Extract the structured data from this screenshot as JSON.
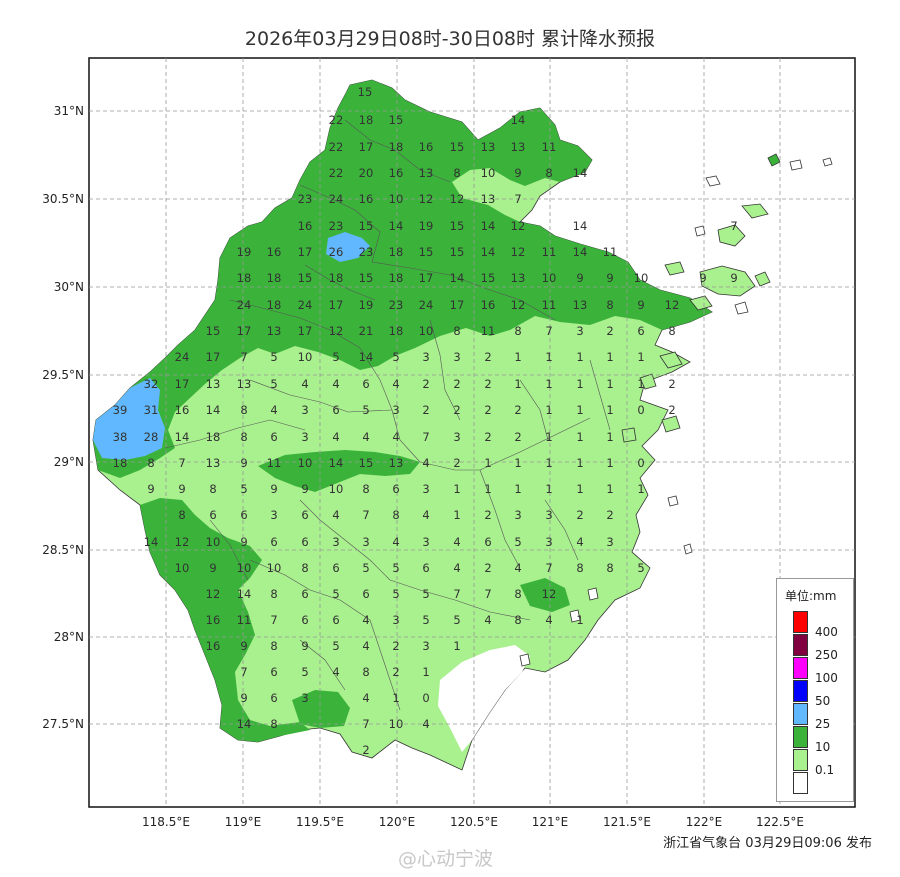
{
  "title": "2026年03月29日08时-30日08时 累计降水预报",
  "axes": {
    "lat_labels": [
      "31°N",
      "30.5°N",
      "30°N",
      "29.5°N",
      "29°N",
      "28.5°N",
      "28°N",
      "27.5°N"
    ],
    "lon_labels": [
      "118.5°E",
      "119°E",
      "119.5°E",
      "120°E",
      "120.5°E",
      "121°E",
      "121.5°E",
      "122°E",
      "122.5°E"
    ]
  },
  "legend": {
    "unit": "单位:mm",
    "items": [
      {
        "label": "400",
        "color": "#ff0000"
      },
      {
        "label": "250",
        "color": "#800040"
      },
      {
        "label": "100",
        "color": "#ff00ff"
      },
      {
        "label": "50",
        "color": "#0000ff"
      },
      {
        "label": "25",
        "color": "#61b8ff"
      },
      {
        "label": "10",
        "color": "#3bb33b"
      },
      {
        "label": "0.1",
        "color": "#a9f08e"
      },
      {
        "label": "",
        "color": "#ffffff"
      }
    ]
  },
  "publisher": "浙江省气象台 03月29日09:06 发布",
  "watermark": "@心动宁波",
  "values": [
    [
      365,
      92,
      "15"
    ],
    [
      336,
      120,
      "22"
    ],
    [
      366,
      120,
      "18"
    ],
    [
      396,
      120,
      "15"
    ],
    [
      518,
      120,
      "14"
    ],
    [
      336,
      147,
      "22"
    ],
    [
      366,
      147,
      "17"
    ],
    [
      396,
      147,
      "18"
    ],
    [
      426,
      147,
      "16"
    ],
    [
      457,
      147,
      "15"
    ],
    [
      488,
      147,
      "13"
    ],
    [
      518,
      147,
      "13"
    ],
    [
      549,
      147,
      "11"
    ],
    [
      336,
      173,
      "22"
    ],
    [
      366,
      173,
      "20"
    ],
    [
      396,
      173,
      "16"
    ],
    [
      426,
      173,
      "13"
    ],
    [
      457,
      173,
      "8"
    ],
    [
      488,
      173,
      "10"
    ],
    [
      518,
      173,
      "9"
    ],
    [
      549,
      173,
      "8"
    ],
    [
      580,
      173,
      "14"
    ],
    [
      305,
      199,
      "23"
    ],
    [
      336,
      199,
      "24"
    ],
    [
      366,
      199,
      "16"
    ],
    [
      396,
      199,
      "10"
    ],
    [
      426,
      199,
      "12"
    ],
    [
      457,
      199,
      "12"
    ],
    [
      488,
      199,
      "13"
    ],
    [
      518,
      199,
      "7"
    ],
    [
      305,
      226,
      "16"
    ],
    [
      336,
      226,
      "23"
    ],
    [
      366,
      226,
      "15"
    ],
    [
      396,
      226,
      "14"
    ],
    [
      426,
      226,
      "19"
    ],
    [
      457,
      226,
      "15"
    ],
    [
      488,
      226,
      "14"
    ],
    [
      518,
      226,
      "12"
    ],
    [
      580,
      226,
      "14"
    ],
    [
      734,
      226,
      "7"
    ],
    [
      244,
      252,
      "19"
    ],
    [
      274,
      252,
      "16"
    ],
    [
      305,
      252,
      "17"
    ],
    [
      336,
      252,
      "26"
    ],
    [
      366,
      252,
      "23"
    ],
    [
      396,
      252,
      "18"
    ],
    [
      426,
      252,
      "15"
    ],
    [
      457,
      252,
      "15"
    ],
    [
      488,
      252,
      "14"
    ],
    [
      518,
      252,
      "12"
    ],
    [
      549,
      252,
      "11"
    ],
    [
      580,
      252,
      "14"
    ],
    [
      610,
      252,
      "11"
    ],
    [
      244,
      278,
      "18"
    ],
    [
      274,
      278,
      "18"
    ],
    [
      305,
      278,
      "15"
    ],
    [
      336,
      278,
      "18"
    ],
    [
      366,
      278,
      "15"
    ],
    [
      396,
      278,
      "18"
    ],
    [
      426,
      278,
      "17"
    ],
    [
      457,
      278,
      "14"
    ],
    [
      488,
      278,
      "15"
    ],
    [
      518,
      278,
      "13"
    ],
    [
      549,
      278,
      "10"
    ],
    [
      580,
      278,
      "9"
    ],
    [
      610,
      278,
      "9"
    ],
    [
      641,
      278,
      "10"
    ],
    [
      703,
      278,
      "9"
    ],
    [
      734,
      278,
      "9"
    ],
    [
      244,
      305,
      "24"
    ],
    [
      274,
      305,
      "18"
    ],
    [
      305,
      305,
      "24"
    ],
    [
      336,
      305,
      "17"
    ],
    [
      366,
      305,
      "19"
    ],
    [
      396,
      305,
      "23"
    ],
    [
      426,
      305,
      "24"
    ],
    [
      457,
      305,
      "17"
    ],
    [
      488,
      305,
      "16"
    ],
    [
      518,
      305,
      "12"
    ],
    [
      549,
      305,
      "11"
    ],
    [
      580,
      305,
      "13"
    ],
    [
      610,
      305,
      "8"
    ],
    [
      641,
      305,
      "9"
    ],
    [
      672,
      305,
      "12"
    ],
    [
      213,
      331,
      "15"
    ],
    [
      244,
      331,
      "17"
    ],
    [
      274,
      331,
      "13"
    ],
    [
      305,
      331,
      "17"
    ],
    [
      336,
      331,
      "12"
    ],
    [
      366,
      331,
      "21"
    ],
    [
      396,
      331,
      "18"
    ],
    [
      426,
      331,
      "10"
    ],
    [
      457,
      331,
      "8"
    ],
    [
      488,
      331,
      "11"
    ],
    [
      518,
      331,
      "8"
    ],
    [
      549,
      331,
      "7"
    ],
    [
      580,
      331,
      "3"
    ],
    [
      610,
      331,
      "2"
    ],
    [
      641,
      331,
      "6"
    ],
    [
      672,
      331,
      "8"
    ],
    [
      182,
      357,
      "24"
    ],
    [
      213,
      357,
      "17"
    ],
    [
      244,
      357,
      "7"
    ],
    [
      274,
      357,
      "5"
    ],
    [
      305,
      357,
      "10"
    ],
    [
      336,
      357,
      "5"
    ],
    [
      366,
      357,
      "14"
    ],
    [
      396,
      357,
      "5"
    ],
    [
      426,
      357,
      "3"
    ],
    [
      457,
      357,
      "3"
    ],
    [
      488,
      357,
      "2"
    ],
    [
      518,
      357,
      "1"
    ],
    [
      549,
      357,
      "1"
    ],
    [
      580,
      357,
      "1"
    ],
    [
      610,
      357,
      "1"
    ],
    [
      641,
      357,
      "1"
    ],
    [
      151,
      384,
      "32"
    ],
    [
      182,
      384,
      "17"
    ],
    [
      213,
      384,
      "13"
    ],
    [
      244,
      384,
      "13"
    ],
    [
      274,
      384,
      "5"
    ],
    [
      305,
      384,
      "4"
    ],
    [
      336,
      384,
      "4"
    ],
    [
      366,
      384,
      "6"
    ],
    [
      396,
      384,
      "4"
    ],
    [
      426,
      384,
      "2"
    ],
    [
      457,
      384,
      "2"
    ],
    [
      488,
      384,
      "2"
    ],
    [
      518,
      384,
      "1"
    ],
    [
      549,
      384,
      "1"
    ],
    [
      580,
      384,
      "1"
    ],
    [
      610,
      384,
      "1"
    ],
    [
      641,
      384,
      "1"
    ],
    [
      672,
      384,
      "2"
    ],
    [
      120,
      410,
      "39"
    ],
    [
      151,
      410,
      "31"
    ],
    [
      182,
      410,
      "16"
    ],
    [
      213,
      410,
      "14"
    ],
    [
      244,
      410,
      "8"
    ],
    [
      274,
      410,
      "4"
    ],
    [
      305,
      410,
      "3"
    ],
    [
      336,
      410,
      "6"
    ],
    [
      366,
      410,
      "5"
    ],
    [
      396,
      410,
      "3"
    ],
    [
      426,
      410,
      "2"
    ],
    [
      457,
      410,
      "2"
    ],
    [
      488,
      410,
      "2"
    ],
    [
      518,
      410,
      "2"
    ],
    [
      549,
      410,
      "1"
    ],
    [
      580,
      410,
      "1"
    ],
    [
      610,
      410,
      "1"
    ],
    [
      641,
      410,
      "0"
    ],
    [
      672,
      410,
      "2"
    ],
    [
      120,
      437,
      "38"
    ],
    [
      151,
      437,
      "28"
    ],
    [
      182,
      437,
      "14"
    ],
    [
      213,
      437,
      "18"
    ],
    [
      244,
      437,
      "8"
    ],
    [
      274,
      437,
      "6"
    ],
    [
      305,
      437,
      "3"
    ],
    [
      336,
      437,
      "4"
    ],
    [
      366,
      437,
      "4"
    ],
    [
      396,
      437,
      "4"
    ],
    [
      426,
      437,
      "7"
    ],
    [
      457,
      437,
      "3"
    ],
    [
      488,
      437,
      "2"
    ],
    [
      518,
      437,
      "2"
    ],
    [
      549,
      437,
      "1"
    ],
    [
      580,
      437,
      "1"
    ],
    [
      610,
      437,
      "1"
    ],
    [
      120,
      463,
      "18"
    ],
    [
      151,
      463,
      "8"
    ],
    [
      182,
      463,
      "7"
    ],
    [
      213,
      463,
      "13"
    ],
    [
      244,
      463,
      "9"
    ],
    [
      274,
      463,
      "11"
    ],
    [
      305,
      463,
      "10"
    ],
    [
      336,
      463,
      "14"
    ],
    [
      366,
      463,
      "15"
    ],
    [
      396,
      463,
      "13"
    ],
    [
      426,
      463,
      "4"
    ],
    [
      457,
      463,
      "2"
    ],
    [
      488,
      463,
      "1"
    ],
    [
      518,
      463,
      "1"
    ],
    [
      549,
      463,
      "1"
    ],
    [
      580,
      463,
      "1"
    ],
    [
      610,
      463,
      "1"
    ],
    [
      641,
      463,
      "0"
    ],
    [
      151,
      489,
      "9"
    ],
    [
      182,
      489,
      "9"
    ],
    [
      213,
      489,
      "8"
    ],
    [
      244,
      489,
      "5"
    ],
    [
      274,
      489,
      "9"
    ],
    [
      305,
      489,
      "9"
    ],
    [
      336,
      489,
      "10"
    ],
    [
      366,
      489,
      "8"
    ],
    [
      396,
      489,
      "6"
    ],
    [
      426,
      489,
      "3"
    ],
    [
      457,
      489,
      "1"
    ],
    [
      488,
      489,
      "1"
    ],
    [
      518,
      489,
      "1"
    ],
    [
      549,
      489,
      "1"
    ],
    [
      580,
      489,
      "1"
    ],
    [
      610,
      489,
      "1"
    ],
    [
      641,
      489,
      "1"
    ],
    [
      182,
      515,
      "8"
    ],
    [
      213,
      515,
      "6"
    ],
    [
      244,
      515,
      "6"
    ],
    [
      274,
      515,
      "3"
    ],
    [
      305,
      515,
      "6"
    ],
    [
      336,
      515,
      "4"
    ],
    [
      366,
      515,
      "7"
    ],
    [
      396,
      515,
      "8"
    ],
    [
      426,
      515,
      "4"
    ],
    [
      457,
      515,
      "1"
    ],
    [
      488,
      515,
      "2"
    ],
    [
      518,
      515,
      "3"
    ],
    [
      549,
      515,
      "3"
    ],
    [
      580,
      515,
      "2"
    ],
    [
      610,
      515,
      "2"
    ],
    [
      151,
      542,
      "14"
    ],
    [
      182,
      542,
      "12"
    ],
    [
      213,
      542,
      "10"
    ],
    [
      244,
      542,
      "9"
    ],
    [
      274,
      542,
      "6"
    ],
    [
      305,
      542,
      "6"
    ],
    [
      336,
      542,
      "3"
    ],
    [
      366,
      542,
      "3"
    ],
    [
      396,
      542,
      "4"
    ],
    [
      426,
      542,
      "3"
    ],
    [
      457,
      542,
      "4"
    ],
    [
      488,
      542,
      "6"
    ],
    [
      518,
      542,
      "5"
    ],
    [
      549,
      542,
      "3"
    ],
    [
      580,
      542,
      "4"
    ],
    [
      610,
      542,
      "3"
    ],
    [
      182,
      568,
      "10"
    ],
    [
      213,
      568,
      "9"
    ],
    [
      244,
      568,
      "10"
    ],
    [
      274,
      568,
      "10"
    ],
    [
      305,
      568,
      "8"
    ],
    [
      336,
      568,
      "6"
    ],
    [
      366,
      568,
      "5"
    ],
    [
      396,
      568,
      "5"
    ],
    [
      426,
      568,
      "6"
    ],
    [
      457,
      568,
      "4"
    ],
    [
      488,
      568,
      "2"
    ],
    [
      518,
      568,
      "4"
    ],
    [
      549,
      568,
      "7"
    ],
    [
      580,
      568,
      "8"
    ],
    [
      610,
      568,
      "8"
    ],
    [
      641,
      568,
      "5"
    ],
    [
      213,
      594,
      "12"
    ],
    [
      244,
      594,
      "14"
    ],
    [
      274,
      594,
      "8"
    ],
    [
      305,
      594,
      "6"
    ],
    [
      336,
      594,
      "5"
    ],
    [
      366,
      594,
      "6"
    ],
    [
      396,
      594,
      "5"
    ],
    [
      426,
      594,
      "5"
    ],
    [
      457,
      594,
      "7"
    ],
    [
      488,
      594,
      "7"
    ],
    [
      518,
      594,
      "8"
    ],
    [
      549,
      594,
      "12"
    ],
    [
      213,
      620,
      "16"
    ],
    [
      244,
      620,
      "11"
    ],
    [
      274,
      620,
      "7"
    ],
    [
      305,
      620,
      "6"
    ],
    [
      336,
      620,
      "6"
    ],
    [
      366,
      620,
      "4"
    ],
    [
      396,
      620,
      "3"
    ],
    [
      426,
      620,
      "5"
    ],
    [
      457,
      620,
      "5"
    ],
    [
      488,
      620,
      "4"
    ],
    [
      518,
      620,
      "8"
    ],
    [
      549,
      620,
      "4"
    ],
    [
      580,
      620,
      "1"
    ],
    [
      213,
      646,
      "16"
    ],
    [
      244,
      646,
      "9"
    ],
    [
      274,
      646,
      "8"
    ],
    [
      305,
      646,
      "9"
    ],
    [
      336,
      646,
      "5"
    ],
    [
      366,
      646,
      "4"
    ],
    [
      396,
      646,
      "2"
    ],
    [
      426,
      646,
      "3"
    ],
    [
      457,
      646,
      "1"
    ],
    [
      244,
      672,
      "7"
    ],
    [
      274,
      672,
      "6"
    ],
    [
      305,
      672,
      "5"
    ],
    [
      336,
      672,
      "4"
    ],
    [
      366,
      672,
      "8"
    ],
    [
      396,
      672,
      "2"
    ],
    [
      426,
      672,
      "1"
    ],
    [
      244,
      698,
      "9"
    ],
    [
      274,
      698,
      "6"
    ],
    [
      305,
      698,
      "3"
    ],
    [
      366,
      698,
      "4"
    ],
    [
      396,
      698,
      "1"
    ],
    [
      426,
      698,
      "0"
    ],
    [
      244,
      724,
      "14"
    ],
    [
      274,
      724,
      "8"
    ],
    [
      366,
      724,
      "7"
    ],
    [
      396,
      724,
      "10"
    ],
    [
      426,
      724,
      "4"
    ],
    [
      366,
      750,
      "2"
    ]
  ]
}
